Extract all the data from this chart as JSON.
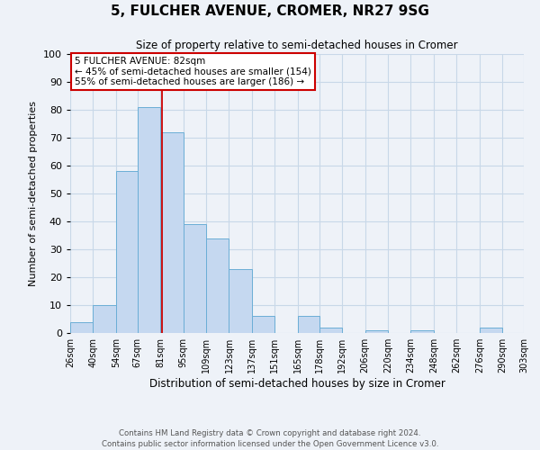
{
  "title": "5, FULCHER AVENUE, CROMER, NR27 9SG",
  "subtitle": "Size of property relative to semi-detached houses in Cromer",
  "xlabel": "Distribution of semi-detached houses by size in Cromer",
  "ylabel": "Number of semi-detached properties",
  "footer_line1": "Contains HM Land Registry data © Crown copyright and database right 2024.",
  "footer_line2": "Contains public sector information licensed under the Open Government Licence v3.0.",
  "bin_labels": [
    "26sqm",
    "40sqm",
    "54sqm",
    "67sqm",
    "81sqm",
    "95sqm",
    "109sqm",
    "123sqm",
    "137sqm",
    "151sqm",
    "165sqm",
    "178sqm",
    "192sqm",
    "206sqm",
    "220sqm",
    "234sqm",
    "248sqm",
    "262sqm",
    "276sqm",
    "290sqm",
    "303sqm"
  ],
  "bin_edges": [
    26,
    40,
    54,
    67,
    81,
    95,
    109,
    123,
    137,
    151,
    165,
    178,
    192,
    206,
    220,
    234,
    248,
    262,
    276,
    290,
    303
  ],
  "bar_heights": [
    4,
    10,
    58,
    81,
    72,
    39,
    34,
    23,
    6,
    0,
    6,
    2,
    0,
    1,
    0,
    1,
    0,
    0,
    2,
    0,
    0
  ],
  "bar_color": "#c5d8f0",
  "bar_edge_color": "#6baed6",
  "property_line_x": 82,
  "annotation_title": "5 FULCHER AVENUE: 82sqm",
  "annotation_line1": "← 45% of semi-detached houses are smaller (154)",
  "annotation_line2": "55% of semi-detached houses are larger (186) →",
  "annotation_box_facecolor": "#ffffff",
  "annotation_box_edgecolor": "#cc0000",
  "ylim": [
    0,
    100
  ],
  "grid_color": "#c8d8e8",
  "background_color": "#eef2f8"
}
